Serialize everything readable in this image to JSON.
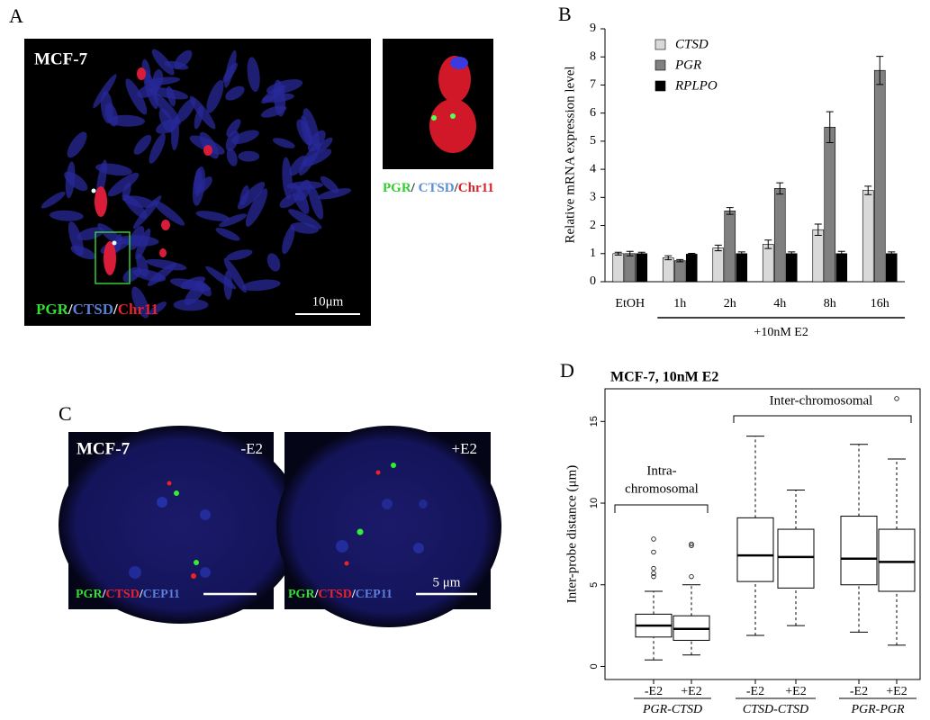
{
  "panel_a": {
    "label": "A",
    "title": "MCF-7",
    "scale": "10μm",
    "legend": [
      {
        "text": "PGR",
        "color": "#33dd33"
      },
      {
        "text": "/",
        "color": "#ffffff"
      },
      {
        "text": "CTSD",
        "color": "#5b7fd6"
      },
      {
        "text": "/",
        "color": "#ffffff"
      },
      {
        "text": "Chr11",
        "color": "#e8222a"
      }
    ],
    "inset_legend": [
      {
        "text": "PGR",
        "color": "#33cc33"
      },
      {
        "text": "/ ",
        "color": "#222222"
      },
      {
        "text": "CTSD",
        "color": "#5b8fd6"
      },
      {
        "text": "/",
        "color": "#222222"
      },
      {
        "text": "Chr11",
        "color": "#d8222a"
      }
    ]
  },
  "panel_c": {
    "label": "C",
    "title": "MCF-7",
    "left_condition": "-E2",
    "right_condition": "+E2",
    "scale": "5 μm",
    "left_legend": [
      {
        "text": "PGR",
        "color": "#33dd33"
      },
      {
        "text": "/",
        "color": "#ffffff"
      },
      {
        "text": "CTSD",
        "color": "#e8222a"
      },
      {
        "text": "/",
        "color": "#ffffff"
      },
      {
        "text": "CEP11",
        "color": "#5b7fd6"
      }
    ],
    "right_legend": [
      {
        "text": "PGR",
        "color": "#33dd33"
      },
      {
        "text": "/",
        "color": "#ffffff"
      },
      {
        "text": "CTSD",
        "color": "#e8222a"
      },
      {
        "text": "/",
        "color": "#ffffff"
      },
      {
        "text": "CEP11",
        "color": "#5b7fd6"
      }
    ]
  },
  "chart_data": [
    {
      "type": "bar",
      "panel_label": "B",
      "y_label": "Relative mRNA expression level",
      "categories": [
        "EtOH",
        "1h",
        "2h",
        "4h",
        "8h",
        "16h"
      ],
      "series": [
        {
          "name": "CTSD",
          "color": "#d9d9d9",
          "values": [
            1.0,
            0.85,
            1.2,
            1.33,
            1.85,
            3.25
          ],
          "errors": [
            0.05,
            0.07,
            0.1,
            0.15,
            0.2,
            0.15
          ]
        },
        {
          "name": "PGR",
          "color": "#808080",
          "values": [
            1.0,
            0.75,
            2.52,
            3.32,
            5.5,
            7.52
          ],
          "errors": [
            0.08,
            0.04,
            0.12,
            0.2,
            0.55,
            0.5
          ]
        },
        {
          "name": "RPLPO",
          "color": "#000000",
          "values": [
            1.0,
            0.98,
            1.0,
            1.0,
            1.0,
            1.0
          ],
          "errors": [
            0.05,
            0.03,
            0.06,
            0.06,
            0.08,
            0.06
          ]
        }
      ],
      "ylim": [
        0,
        9
      ],
      "yticks": [
        0,
        1,
        2,
        3,
        4,
        5,
        6,
        7,
        8,
        9
      ],
      "bracket_label": "+10nM E2"
    },
    {
      "type": "box",
      "panel_label": "D",
      "title": "MCF-7, 10nM E2",
      "y_label": "Inter-probe distance (μm)",
      "categories": [
        "-E2",
        "+E2",
        "-E2",
        "+E2",
        "-E2",
        "+E2"
      ],
      "groups": [
        "PGR-CTSD",
        "CTSD-CTSD",
        "PGR-PGR"
      ],
      "boxes": [
        {
          "min": 0.4,
          "q1": 1.8,
          "median": 2.5,
          "q3": 3.2,
          "max": 4.6,
          "outliers": [
            5.5,
            5.7,
            6.0,
            7.0,
            7.8
          ]
        },
        {
          "min": 0.7,
          "q1": 1.6,
          "median": 2.3,
          "q3": 3.1,
          "max": 5.0,
          "outliers": [
            5.5,
            7.4,
            7.5
          ]
        },
        {
          "min": 1.9,
          "q1": 5.2,
          "median": 6.8,
          "q3": 9.1,
          "max": 14.1,
          "outliers": []
        },
        {
          "min": 2.5,
          "q1": 4.8,
          "median": 6.7,
          "q3": 8.4,
          "max": 10.8,
          "outliers": []
        },
        {
          "min": 2.1,
          "q1": 5.0,
          "median": 6.6,
          "q3": 9.2,
          "max": 13.6,
          "outliers": []
        },
        {
          "min": 1.3,
          "q1": 4.6,
          "median": 6.4,
          "q3": 8.4,
          "max": 12.7,
          "outliers": [
            16.4
          ]
        }
      ],
      "ylim": [
        -0.8,
        17
      ],
      "yticks": [
        0,
        5,
        10,
        15
      ],
      "intra_label": [
        "Intra-",
        "chromosomal"
      ],
      "inter_label": "Inter-chromosomal"
    }
  ]
}
